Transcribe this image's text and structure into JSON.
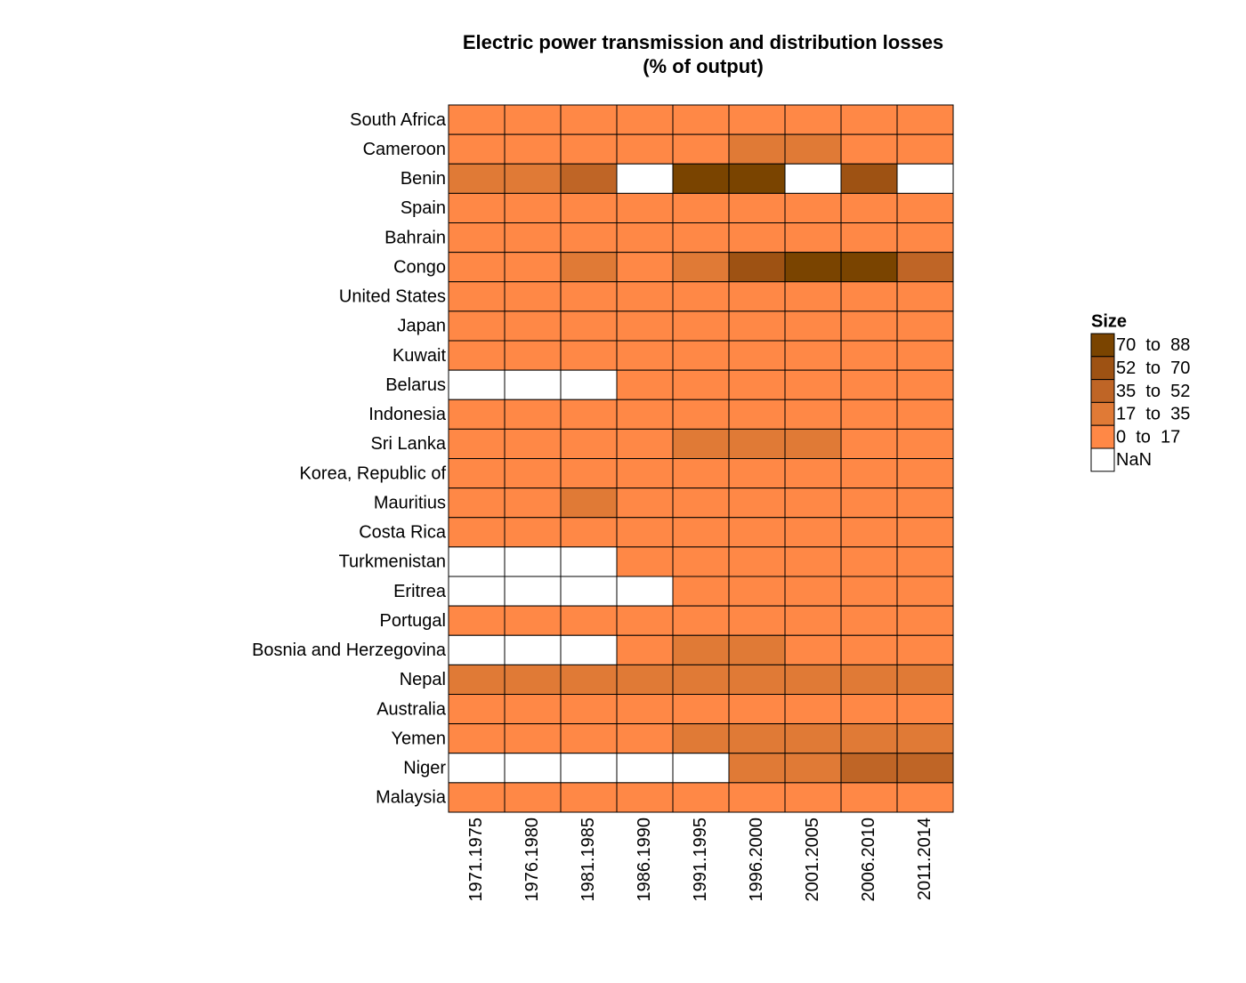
{
  "chart_data": {
    "type": "heatmap",
    "title": "Electric power transmission and distribution losses",
    "subtitle": "(% of output)",
    "x_categories": [
      "1971.1975",
      "1976.1980",
      "1981.1985",
      "1986.1990",
      "1991.1995",
      "1996.2000",
      "2001.2005",
      "2006.2010",
      "2011.2014"
    ],
    "y_categories": [
      "South Africa",
      "Cameroon",
      "Benin",
      "Spain",
      "Bahrain",
      "Congo",
      "United States",
      "Japan",
      "Kuwait",
      "Belarus",
      "Indonesia",
      "Sri Lanka",
      "Korea, Republic of",
      "Mauritius",
      "Costa Rica",
      "Turkmenistan",
      "Eritrea",
      "Portugal",
      "Bosnia and Herzegovina",
      "Nepal",
      "Australia",
      "Yemen",
      "Niger",
      "Malaysia"
    ],
    "values": [
      [
        9,
        9,
        8,
        8,
        8,
        8,
        9,
        9,
        9
      ],
      [
        10,
        11,
        11,
        12,
        14,
        22,
        20,
        14,
        13
      ],
      [
        30,
        28,
        40,
        null,
        80,
        84,
        null,
        55,
        null
      ],
      [
        10,
        10,
        10,
        10,
        9,
        9,
        9,
        9,
        9
      ],
      [
        6,
        6,
        6,
        7,
        7,
        7,
        6,
        6,
        5
      ],
      [
        14,
        15,
        28,
        12,
        30,
        60,
        78,
        80,
        45
      ],
      [
        8,
        8,
        8,
        7,
        7,
        6,
        6,
        6,
        6
      ],
      [
        6,
        5,
        5,
        5,
        4,
        4,
        4,
        5,
        5
      ],
      [
        12,
        11,
        10,
        10,
        9,
        8,
        12,
        12,
        11
      ],
      [
        null,
        null,
        null,
        9,
        10,
        14,
        13,
        11,
        10
      ],
      [
        15,
        16,
        15,
        14,
        12,
        11,
        12,
        10,
        9
      ],
      [
        15,
        16,
        16,
        16,
        20,
        19,
        18,
        15,
        12
      ],
      [
        12,
        9,
        7,
        6,
        5,
        5,
        4,
        4,
        3
      ],
      [
        12,
        14,
        18,
        14,
        13,
        13,
        13,
        12,
        8
      ],
      [
        8,
        8,
        8,
        8,
        10,
        10,
        10,
        11,
        11
      ],
      [
        null,
        null,
        null,
        12,
        12,
        13,
        14,
        14,
        14
      ],
      [
        null,
        null,
        null,
        null,
        10,
        10,
        14,
        15,
        14
      ],
      [
        12,
        12,
        12,
        11,
        10,
        9,
        9,
        8,
        10
      ],
      [
        null,
        null,
        null,
        14,
        25,
        22,
        15,
        14,
        13
      ],
      [
        20,
        24,
        28,
        28,
        26,
        25,
        25,
        25,
        24
      ],
      [
        10,
        9,
        8,
        8,
        7,
        6,
        6,
        6,
        5
      ],
      [
        12,
        12,
        13,
        15,
        24,
        27,
        26,
        26,
        25
      ],
      [
        null,
        null,
        null,
        null,
        null,
        25,
        30,
        40,
        45
      ],
      [
        12,
        12,
        10,
        10,
        9,
        7,
        6,
        6,
        6
      ]
    ],
    "legend": {
      "title": "Size",
      "bins": [
        {
          "label": "70  to  88",
          "min": 70,
          "max": 88,
          "color": "#7a4400"
        },
        {
          "label": "52  to  70",
          "min": 52,
          "max": 70,
          "color": "#9e5213"
        },
        {
          "label": "35  to  52",
          "min": 35,
          "max": 52,
          "color": "#bf6526"
        },
        {
          "label": "17  to  35",
          "min": 17,
          "max": 35,
          "color": "#e07a36"
        },
        {
          "label": "0  to  17",
          "min": 0,
          "max": 17,
          "color": "#ff8846"
        }
      ],
      "na": {
        "label": "NaN",
        "color": "#ffffff"
      }
    }
  }
}
